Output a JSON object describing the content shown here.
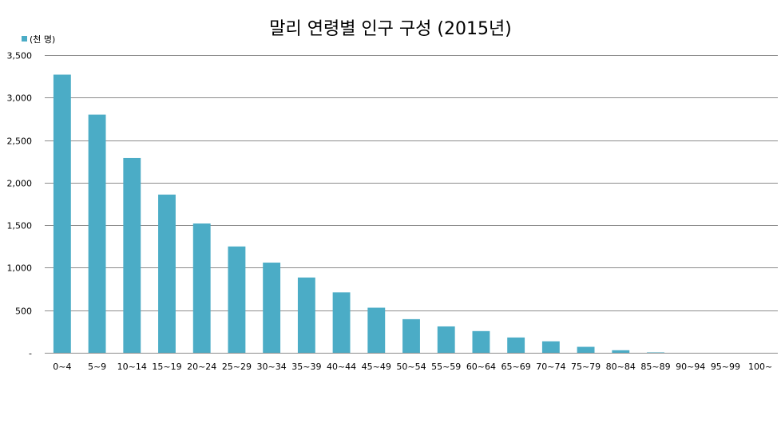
{
  "chart_data": {
    "type": "bar",
    "title": "말리 연령별 인구 구성 (2015년)",
    "legend": {
      "label": "(천 명)",
      "position": "top-left"
    },
    "colors": {
      "bar": "#4bacc6",
      "grid": "#8c8c8c"
    },
    "categories": [
      "0~4",
      "5~9",
      "10~14",
      "15~19",
      "20~24",
      "25~29",
      "30~34",
      "35~39",
      "40~44",
      "45~49",
      "50~54",
      "55~59",
      "60~64",
      "65~69",
      "70~74",
      "75~79",
      "80~84",
      "85~89",
      "90~94",
      "95~99",
      "100~"
    ],
    "values": [
      3270,
      2800,
      2290,
      1860,
      1520,
      1250,
      1060,
      885,
      710,
      530,
      395,
      310,
      255,
      180,
      135,
      70,
      30,
      5,
      0,
      0,
      0
    ],
    "ylim": [
      0,
      3500
    ],
    "yticks": [
      0,
      500,
      1000,
      1500,
      2000,
      2500,
      3000,
      3500
    ],
    "ytick_labels": [
      "-",
      "500",
      "1,000",
      "1,500",
      "2,000",
      "2,500",
      "3,000",
      "3,500"
    ],
    "grid": true,
    "xlabel": "",
    "ylabel": ""
  }
}
